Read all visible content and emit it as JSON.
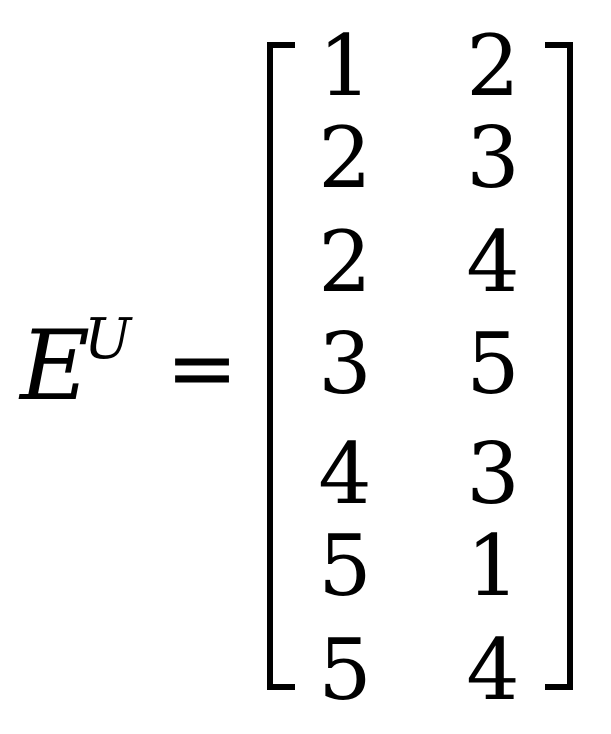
{
  "equation": {
    "symbol": "E",
    "superscript": "U",
    "equals": "=",
    "matrix": {
      "rows": [
        [
          "1",
          "2"
        ],
        [
          "2",
          "3"
        ],
        [
          "2",
          "4"
        ],
        [
          "3",
          "5"
        ],
        [
          "4",
          "3"
        ],
        [
          "5",
          "1"
        ],
        [
          "5",
          "4"
        ]
      ]
    }
  }
}
